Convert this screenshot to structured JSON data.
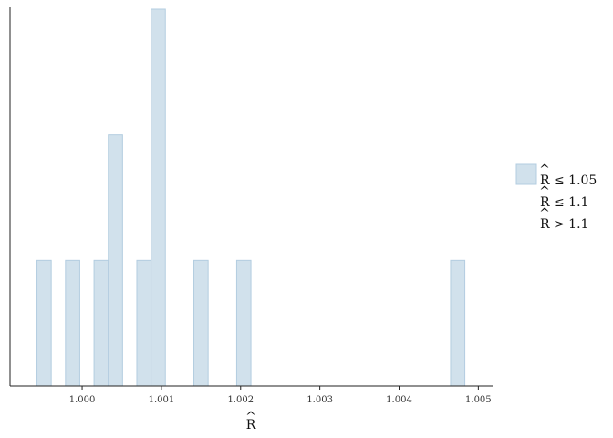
{
  "chart_data": {
    "type": "bar",
    "subtype": "histogram",
    "xlabel": "R",
    "xlabel_hat": "^",
    "x_ticks": [
      1.0,
      1.001,
      1.002,
      1.003,
      1.004,
      1.005
    ],
    "x_tick_labels": [
      "1.000",
      "1.001",
      "1.002",
      "1.003",
      "1.004",
      "1.005"
    ],
    "xlim": [
      0.99909,
      1.00518
    ],
    "ylim": [
      0,
      3
    ],
    "y_ticks_shown": false,
    "bin_width": 0.00018,
    "bins": [
      {
        "x": 0.99952,
        "count": 1
      },
      {
        "x": 0.99988,
        "count": 1
      },
      {
        "x": 1.00024,
        "count": 1
      },
      {
        "x": 1.00042,
        "count": 2
      },
      {
        "x": 1.00078,
        "count": 1
      },
      {
        "x": 1.00096,
        "count": 3
      },
      {
        "x": 1.0015,
        "count": 1
      },
      {
        "x": 1.00204,
        "count": 1
      },
      {
        "x": 1.00474,
        "count": 1
      }
    ],
    "bar_fill": "#d1e1ec",
    "bar_stroke": "#b3cde0",
    "legend": {
      "position": "right",
      "entries": [
        {
          "label": "R ≤ 1.05",
          "hat": "^",
          "swatch": "#d1e1ec"
        },
        {
          "label": "R ≤ 1.1",
          "hat": "^"
        },
        {
          "label": "R > 1.1",
          "hat": "^"
        }
      ]
    },
    "grid": false
  }
}
